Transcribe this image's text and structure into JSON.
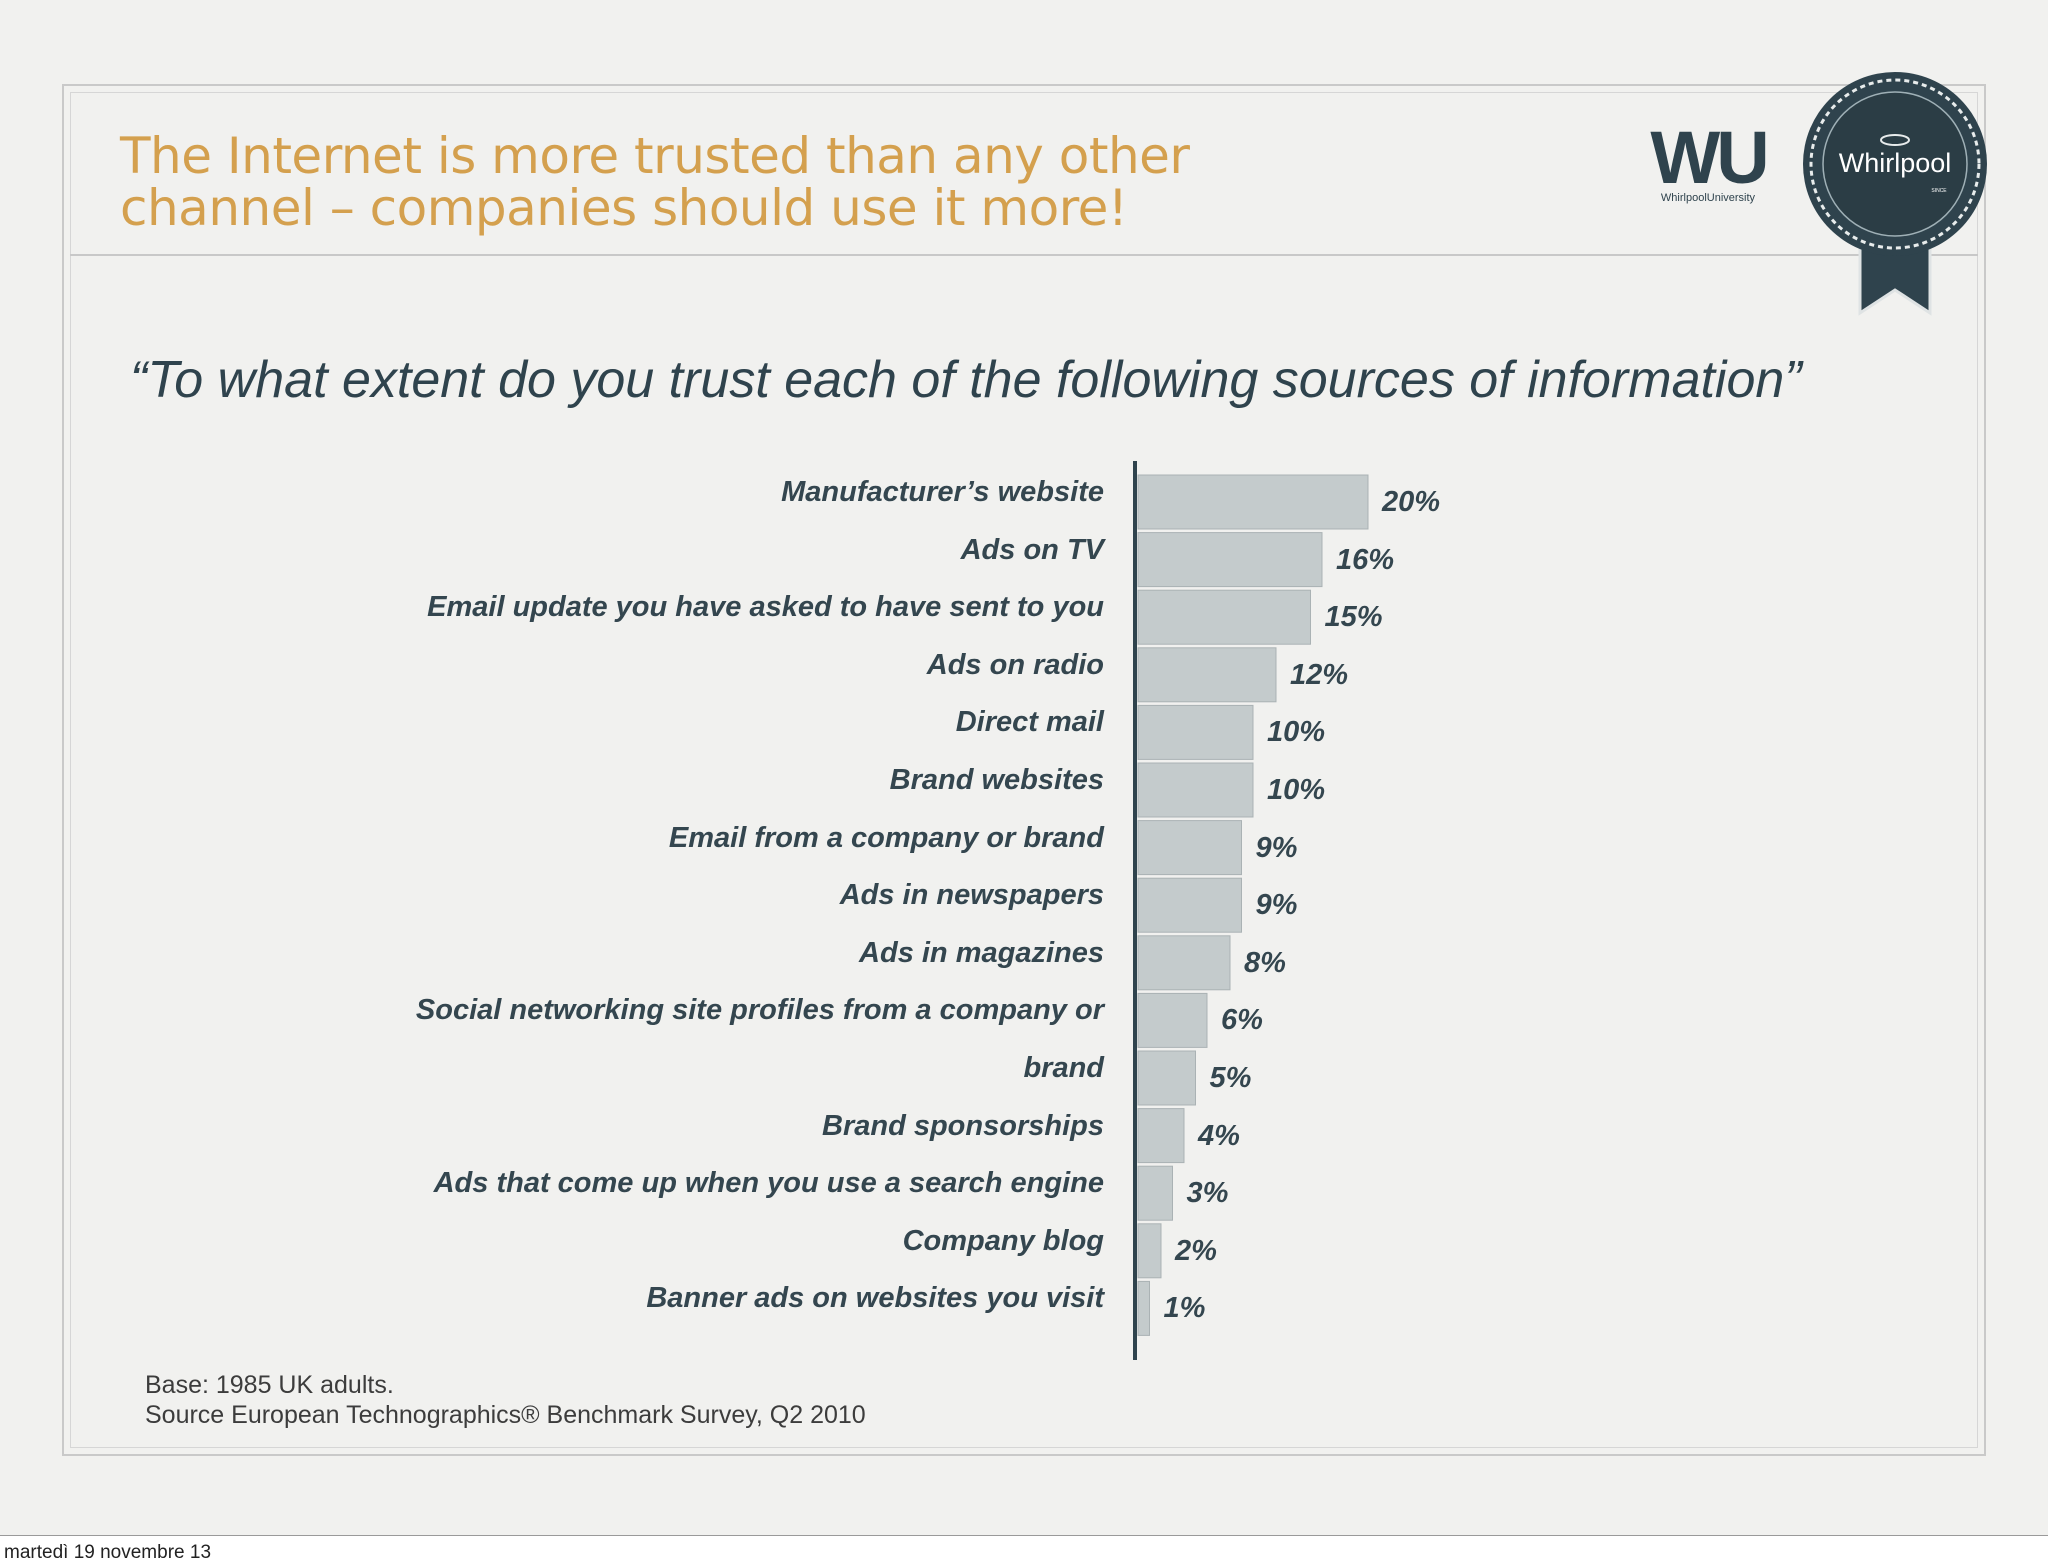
{
  "slide": {
    "title_line1": "The Internet is more trusted than any other",
    "title_line2": "channel – companies should use it more!",
    "question": "“To what extent do you trust each of the following sources of information”",
    "footnote_base": "Base: 1985 UK adults.",
    "footnote_source": "Source European Technographics® Benchmark Survey, Q2 2010",
    "date": "martedì 19 novembre 13"
  },
  "logos": {
    "wu_text": "WU",
    "wu_sub": "WhirlpoolUniversity",
    "seal_text": "Whirlpool",
    "seal_sub": "SINCE"
  },
  "colors": {
    "title": "#d4a04e",
    "text": "#34464f",
    "bar": "#c4cbcc",
    "bar_stroke": "#aab2b4",
    "axis": "#2f434d"
  },
  "chart_data": {
    "type": "bar",
    "orientation": "horizontal",
    "title": "“To what extent do you trust each of the following sources of information”",
    "xlabel": "",
    "ylabel": "",
    "grid": false,
    "legend": "none",
    "xlim": [
      0,
      20
    ],
    "categories": [
      "Manufacturer’s website",
      "Ads on TV",
      "Email update you have asked to have sent to you",
      "Ads on radio",
      "Direct mail",
      "Brand websites",
      "Email from a company or brand",
      "Ads in newspapers",
      "Ads in magazines",
      "Social networking site profiles from a company or",
      "brand",
      "Brand sponsorships",
      "Ads that come up when you use a search engine",
      "Company blog",
      "Banner ads on websites you visit"
    ],
    "values": [
      20,
      16,
      15,
      12,
      10,
      10,
      9,
      9,
      8,
      6,
      5,
      4,
      3,
      2,
      1
    ],
    "value_labels": [
      "20%",
      "16%",
      "15%",
      "12%",
      "10%",
      "10%",
      "9%",
      "9%",
      "8%",
      "6%",
      "5%",
      "4%",
      "3%",
      "2%",
      "1%"
    ]
  }
}
